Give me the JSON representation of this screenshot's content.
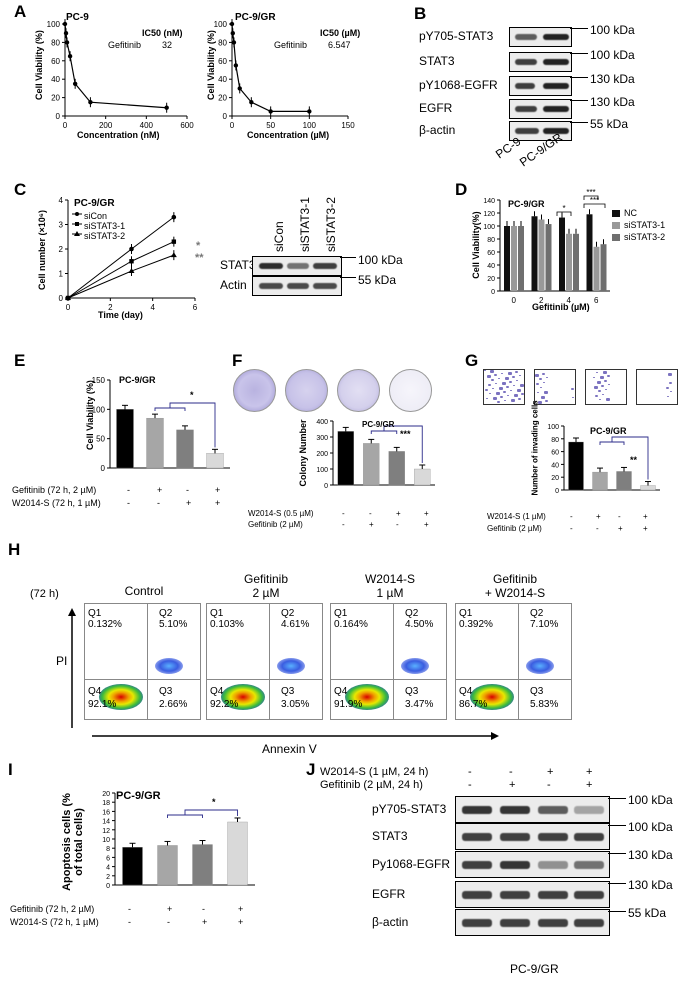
{
  "panel_labels": {
    "A": "A",
    "B": "B",
    "C": "C",
    "D": "D",
    "E": "E",
    "F": "F",
    "G": "G",
    "H": "H",
    "I": "I",
    "J": "J"
  },
  "panel_a": {
    "left": {
      "title": "PC-9",
      "ylabel": "Cell Viability (%)",
      "xlabel": "Concentration (nM)",
      "ic50_header": "IC50 (nM)",
      "drug": "Gefitinib",
      "ic50": "32",
      "yticks": [
        "0",
        "20",
        "40",
        "60",
        "80",
        "100"
      ],
      "xticks": [
        "0",
        "200",
        "400",
        "600"
      ]
    },
    "right": {
      "title": "PC-9/GR",
      "ylabel": "Cell Viability (%)",
      "xlabel": "Concentration (µM)",
      "ic50_header": "IC50 (µM)",
      "drug": "Gefitinib",
      "ic50": "6.547",
      "yticks": [
        "0",
        "20",
        "40",
        "60",
        "80",
        "100"
      ],
      "xticks": [
        "0",
        "50",
        "100",
        "150"
      ]
    }
  },
  "panel_b": {
    "rows": [
      {
        "label": "pY705-STAT3",
        "kda": "100 kDa"
      },
      {
        "label": "STAT3",
        "kda": "100 kDa"
      },
      {
        "label": "pY1068-EGFR",
        "kda": "130 kDa"
      },
      {
        "label": "EGFR",
        "kda": "130 kDa"
      },
      {
        "label": "β-actin",
        "kda": "55 kDa"
      }
    ],
    "lanes": [
      "PC-9",
      "PC-9/GR"
    ]
  },
  "panel_c": {
    "title": "PC-9/GR",
    "ylabel": "Cell number (×10⁶)",
    "xlabel": "Time (day)",
    "legend": [
      "siCon",
      "siSTAT3-1",
      "siSTAT3-2"
    ],
    "yticks": [
      "0",
      "1",
      "2",
      "3",
      "4"
    ],
    "xticks": [
      "0",
      "2",
      "4",
      "6"
    ],
    "sig1": "*",
    "sig2": "**",
    "blot": {
      "lanes": [
        "siCon",
        "siSTAT3-1",
        "siSTAT3-2"
      ],
      "rows": [
        {
          "label": "STAT3",
          "kda": "100 kDa"
        },
        {
          "label": "Actin",
          "kda": "55 kDa"
        }
      ]
    }
  },
  "panel_d": {
    "title": "PC-9/GR",
    "ylabel": "Cell Viability(%)",
    "xlabel": "Gefitinib (µM)",
    "legend": [
      "NC",
      "siSTAT3-1",
      "siSTAT3-2"
    ],
    "yticks": [
      "0",
      "20",
      "40",
      "60",
      "80",
      "100",
      "120",
      "140"
    ],
    "sig": [
      "*",
      "***",
      "***"
    ]
  },
  "panel_e": {
    "title": "PC-9/GR",
    "ylabel": "Cell Viability (%)",
    "yticks": [
      "0",
      "50",
      "100",
      "150"
    ],
    "sig": "*",
    "conditions": [
      {
        "label": "Gefitinib (72 h, 2 µM)",
        "marks": [
          "-",
          "+",
          "-",
          "+"
        ]
      },
      {
        "label": "W2014-S (72 h, 1 µM)",
        "marks": [
          "-",
          "-",
          "+",
          "+"
        ]
      }
    ]
  },
  "panel_f": {
    "title": "PC-9/GR",
    "ylabel": "Colony Number",
    "yticks": [
      "0",
      "100",
      "200",
      "300",
      "400"
    ],
    "sig": "***",
    "conditions": [
      {
        "label": "W2014-S (0.5 µM)",
        "marks": [
          "-",
          "-",
          "+",
          "+"
        ]
      },
      {
        "label": "Gefitinib (2 µM)",
        "marks": [
          "-",
          "+",
          "-",
          "+"
        ]
      }
    ]
  },
  "panel_g": {
    "title": "PC-9/GR",
    "ylabel": "Number of invading cells",
    "yticks": [
      "0",
      "20",
      "40",
      "60",
      "80",
      "100"
    ],
    "sig": "**",
    "conditions": [
      {
        "label": "W2014-S (1 µM)",
        "marks": [
          "-",
          "+",
          "-",
          "+"
        ]
      },
      {
        "label": "Gefitinib (2 µM)",
        "marks": [
          "-",
          "-",
          "+",
          "+"
        ]
      }
    ]
  },
  "panel_h": {
    "time": "(72 h)",
    "ylabel": "PI",
    "xlabel": "Annexin V",
    "plots": [
      {
        "title": "Control",
        "q1": "0.132%",
        "q2": "5.10%",
        "q3": "2.66%",
        "q4": "92.1%"
      },
      {
        "title": "Gefitinib\n2 µM",
        "q1": "0.103%",
        "q2": "4.61%",
        "q3": "3.05%",
        "q4": "92.2%"
      },
      {
        "title": "W2014-S\n1 µM",
        "q1": "0.164%",
        "q2": "4.50%",
        "q3": "3.47%",
        "q4": "91.9%"
      },
      {
        "title": "Gefitinib\n+ W2014-S",
        "q1": "0.392%",
        "q2": "7.10%",
        "q3": "5.83%",
        "q4": "86.7%"
      }
    ],
    "qnames": [
      "Q1",
      "Q2",
      "Q3",
      "Q4"
    ]
  },
  "panel_i": {
    "title": "PC-9/GR",
    "ylabel": "Apoptosis cells (% of total cells)",
    "yticks": [
      "0",
      "2",
      "4",
      "6",
      "8",
      "10",
      "12",
      "14",
      "16",
      "18",
      "20"
    ],
    "sig": "*",
    "conditions": [
      {
        "label": "Gefitinib (72 h, 2 µM)",
        "marks": [
          "-",
          "+",
          "-",
          "+"
        ]
      },
      {
        "label": "W2014-S (72 h, 1 µM)",
        "marks": [
          "-",
          "-",
          "+",
          "+"
        ]
      }
    ]
  },
  "panel_j": {
    "conditions": [
      {
        "label": "W2014-S (1 µM, 24 h)",
        "marks": [
          "-",
          "-",
          "+",
          "+"
        ]
      },
      {
        "label": "Gefitinib (2 µM, 24 h)",
        "marks": [
          "-",
          "+",
          "-",
          "+"
        ]
      }
    ],
    "rows": [
      {
        "label": "pY705-STAT3",
        "kda": "100 kDa"
      },
      {
        "label": "STAT3",
        "kda": "100 kDa"
      },
      {
        "label": "Py1068-EGFR",
        "kda": "130 kDa"
      },
      {
        "label": "EGFR",
        "kda": "130 kDa"
      },
      {
        "label": "β-actin",
        "kda": "55 kDa"
      }
    ],
    "footer": "PC-9/GR"
  },
  "chart_data": [
    {
      "type": "line",
      "id": "A-left",
      "title": "PC-9",
      "xlabel": "Concentration (nM)",
      "ylabel": "Cell Viability (%)",
      "x": [
        0,
        5,
        10,
        25,
        50,
        125,
        500
      ],
      "series": [
        {
          "name": "Gefitinib",
          "values": [
            100,
            90,
            80,
            65,
            35,
            15,
            9
          ]
        }
      ],
      "xlim": [
        0,
        600
      ],
      "ylim": [
        0,
        100
      ]
    },
    {
      "type": "line",
      "id": "A-right",
      "title": "PC-9/GR",
      "xlabel": "Concentration (µM)",
      "ylabel": "Cell Viability (%)",
      "x": [
        0,
        1,
        2.5,
        5,
        10,
        25,
        50,
        100
      ],
      "series": [
        {
          "name": "Gefitinib",
          "values": [
            100,
            90,
            80,
            55,
            30,
            15,
            5,
            5
          ]
        }
      ],
      "xlim": [
        0,
        150
      ],
      "ylim": [
        0,
        100
      ]
    },
    {
      "type": "line",
      "id": "C",
      "title": "PC-9/GR",
      "xlabel": "Time (day)",
      "ylabel": "Cell number (×10⁶)",
      "x": [
        0,
        3,
        5
      ],
      "series": [
        {
          "name": "siCon",
          "values": [
            0,
            2.0,
            3.3
          ]
        },
        {
          "name": "siSTAT3-1",
          "values": [
            0,
            1.5,
            2.3
          ]
        },
        {
          "name": "siSTAT3-2",
          "values": [
            0,
            1.1,
            1.75
          ]
        }
      ],
      "xlim": [
        0,
        6
      ],
      "ylim": [
        0,
        4
      ]
    },
    {
      "type": "bar",
      "id": "D",
      "title": "PC-9/GR",
      "xlabel": "Gefitinib (µM)",
      "ylabel": "Cell Viability(%)",
      "categories": [
        "0",
        "2",
        "4",
        "6"
      ],
      "series": [
        {
          "name": "NC",
          "values": [
            100,
            115,
            113,
            118
          ]
        },
        {
          "name": "siSTAT3-1",
          "values": [
            100,
            110,
            88,
            68
          ]
        },
        {
          "name": "siSTAT3-2",
          "values": [
            100,
            103,
            88,
            72
          ]
        }
      ],
      "ylim": [
        0,
        140
      ]
    },
    {
      "type": "bar",
      "id": "E",
      "title": "PC-9/GR",
      "ylabel": "Cell Viability (%)",
      "categories": [
        "1",
        "2",
        "3",
        "4"
      ],
      "values": [
        100,
        85,
        65,
        25
      ],
      "ylim": [
        0,
        150
      ]
    },
    {
      "type": "bar",
      "id": "F",
      "title": "PC-9/GR",
      "ylabel": "Colony Number",
      "categories": [
        "1",
        "2",
        "3",
        "4"
      ],
      "values": [
        335,
        260,
        210,
        100
      ],
      "ylim": [
        0,
        400
      ]
    },
    {
      "type": "bar",
      "id": "G",
      "title": "PC-9/GR",
      "ylabel": "Number of invading cells",
      "categories": [
        "1",
        "2",
        "3",
        "4"
      ],
      "values": [
        75,
        28,
        29,
        7
      ],
      "ylim": [
        0,
        100
      ]
    },
    {
      "type": "bar",
      "id": "I",
      "title": "PC-9/GR",
      "ylabel": "Apoptosis cells (% of total cells)",
      "categories": [
        "1",
        "2",
        "3",
        "4"
      ],
      "values": [
        8.2,
        8.6,
        8.8,
        13.7
      ],
      "ylim": [
        0,
        20
      ]
    }
  ]
}
